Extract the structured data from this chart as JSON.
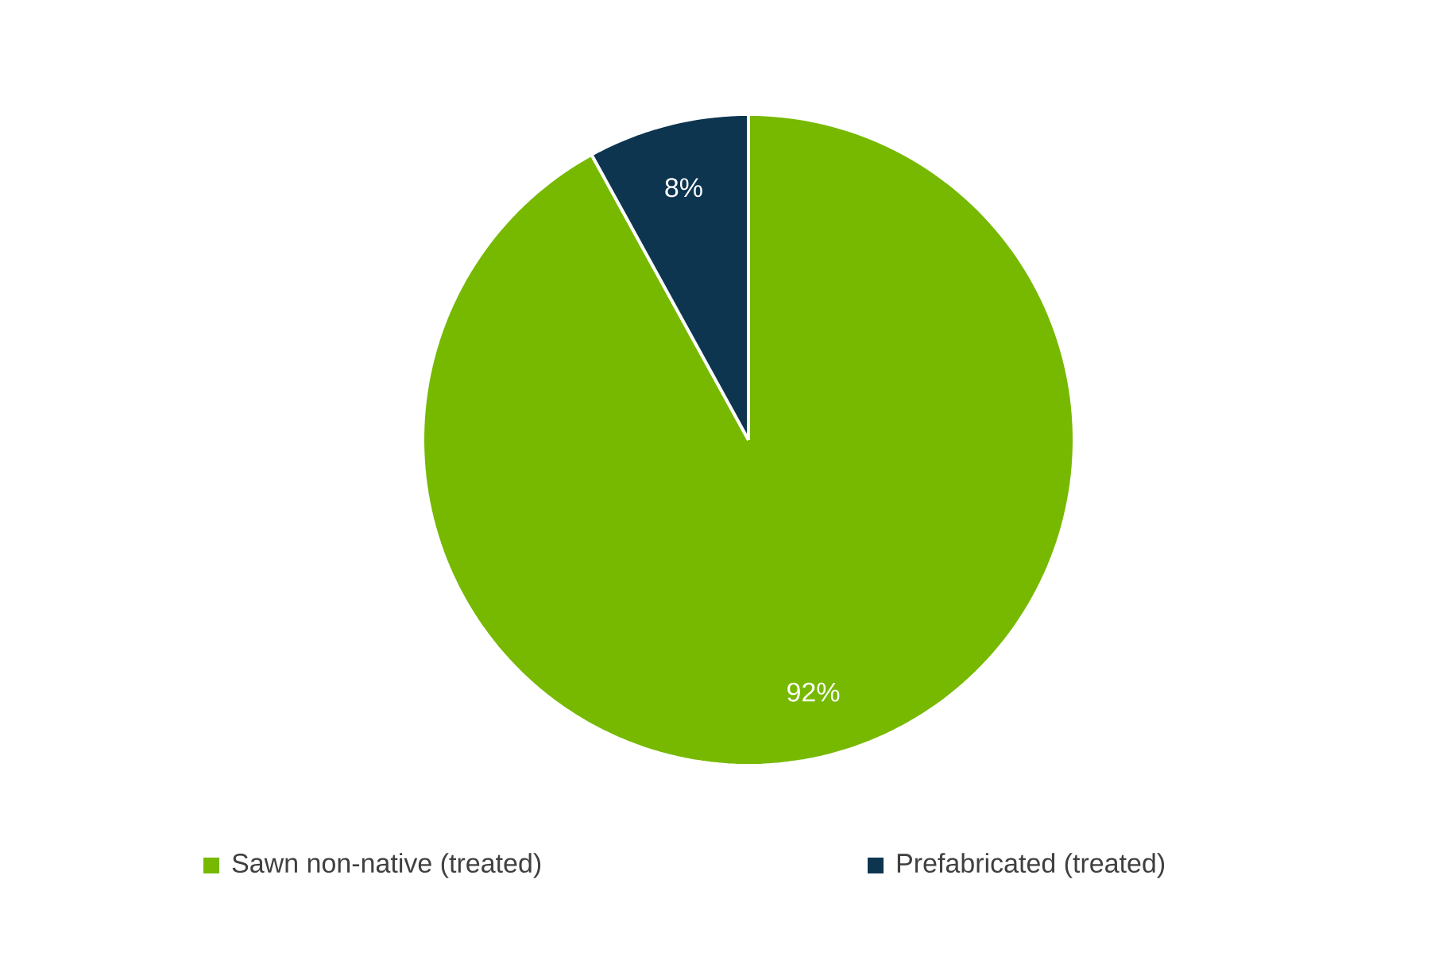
{
  "chart_data": {
    "type": "pie",
    "categories": [
      "Sawn non-native (treated)",
      "Prefabricated (treated)"
    ],
    "values": [
      92,
      8
    ],
    "colors": [
      "#76b900",
      "#0d3550"
    ],
    "value_labels": [
      "92%",
      "8%"
    ],
    "legend": "bottom"
  }
}
